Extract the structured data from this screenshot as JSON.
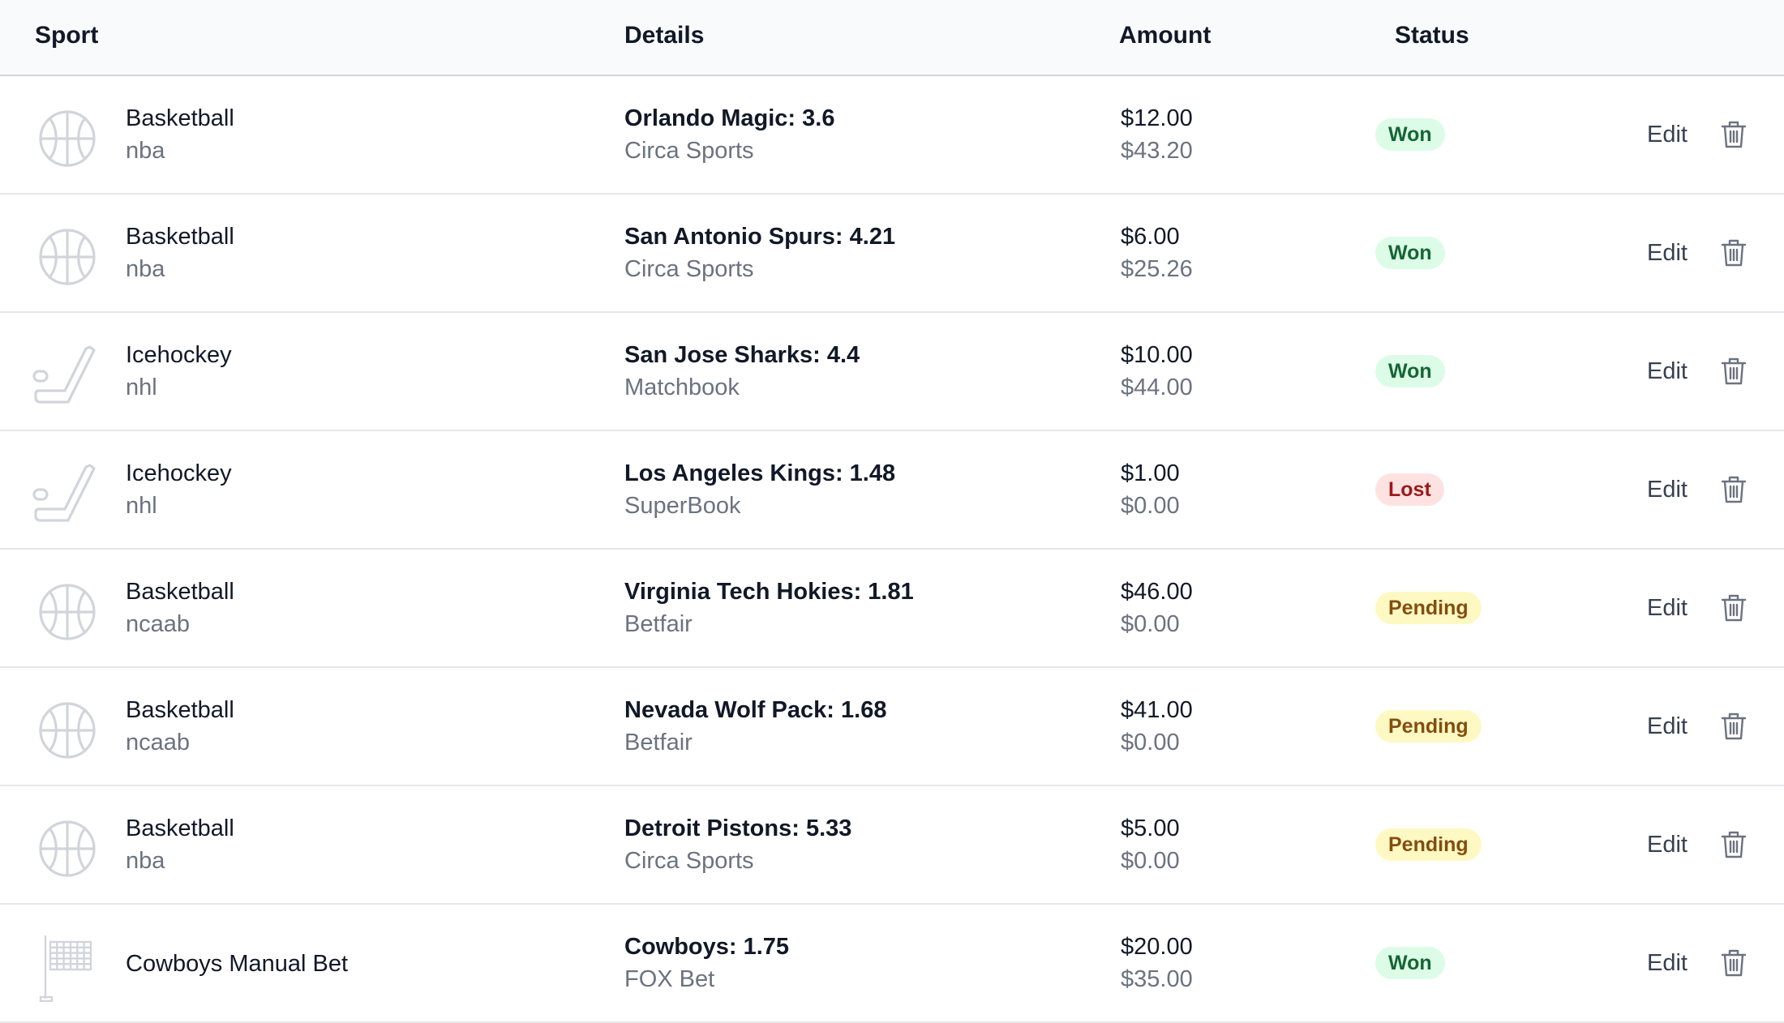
{
  "header": {
    "sport": "Sport",
    "details": "Details",
    "amount": "Amount",
    "status": "Status"
  },
  "colors": {
    "won_bg": "#dcfce7",
    "won_text": "#166534",
    "lost_bg": "#fee2e2",
    "lost_text": "#991b1b",
    "pending_bg": "#fef9c3",
    "pending_text": "#854d0e"
  },
  "rows": [
    {
      "icon": "basketball-icon",
      "sport": "Basketball",
      "league": "nba",
      "pick": "Orlando Magic: 3.6",
      "book": "Circa Sports",
      "stake": "$12.00",
      "payout": "$43.20",
      "status": "Won",
      "edit": "Edit"
    },
    {
      "icon": "basketball-icon",
      "sport": "Basketball",
      "league": "nba",
      "pick": "San Antonio Spurs: 4.21",
      "book": "Circa Sports",
      "stake": "$6.00",
      "payout": "$25.26",
      "status": "Won",
      "edit": "Edit"
    },
    {
      "icon": "hockey-stick-icon",
      "sport": "Icehockey",
      "league": "nhl",
      "pick": "San Jose Sharks: 4.4",
      "book": "Matchbook",
      "stake": "$10.00",
      "payout": "$44.00",
      "status": "Won",
      "edit": "Edit"
    },
    {
      "icon": "hockey-stick-icon",
      "sport": "Icehockey",
      "league": "nhl",
      "pick": "Los Angeles Kings: 1.48",
      "book": "SuperBook",
      "stake": "$1.00",
      "payout": "$0.00",
      "status": "Lost",
      "edit": "Edit"
    },
    {
      "icon": "basketball-icon",
      "sport": "Basketball",
      "league": "ncaab",
      "pick": "Virginia Tech Hokies: 1.81",
      "book": "Betfair",
      "stake": "$46.00",
      "payout": "$0.00",
      "status": "Pending",
      "edit": "Edit"
    },
    {
      "icon": "basketball-icon",
      "sport": "Basketball",
      "league": "ncaab",
      "pick": "Nevada Wolf Pack: 1.68",
      "book": "Betfair",
      "stake": "$41.00",
      "payout": "$0.00",
      "status": "Pending",
      "edit": "Edit"
    },
    {
      "icon": "basketball-icon",
      "sport": "Basketball",
      "league": "nba",
      "pick": "Detroit Pistons: 5.33",
      "book": "Circa Sports",
      "stake": "$5.00",
      "payout": "$0.00",
      "status": "Pending",
      "edit": "Edit"
    },
    {
      "icon": "checkered-flag-icon",
      "sport": "Cowboys Manual Bet",
      "league": "",
      "pick": "Cowboys: 1.75",
      "book": "FOX Bet",
      "stake": "$20.00",
      "payout": "$35.00",
      "status": "Won",
      "edit": "Edit"
    }
  ]
}
